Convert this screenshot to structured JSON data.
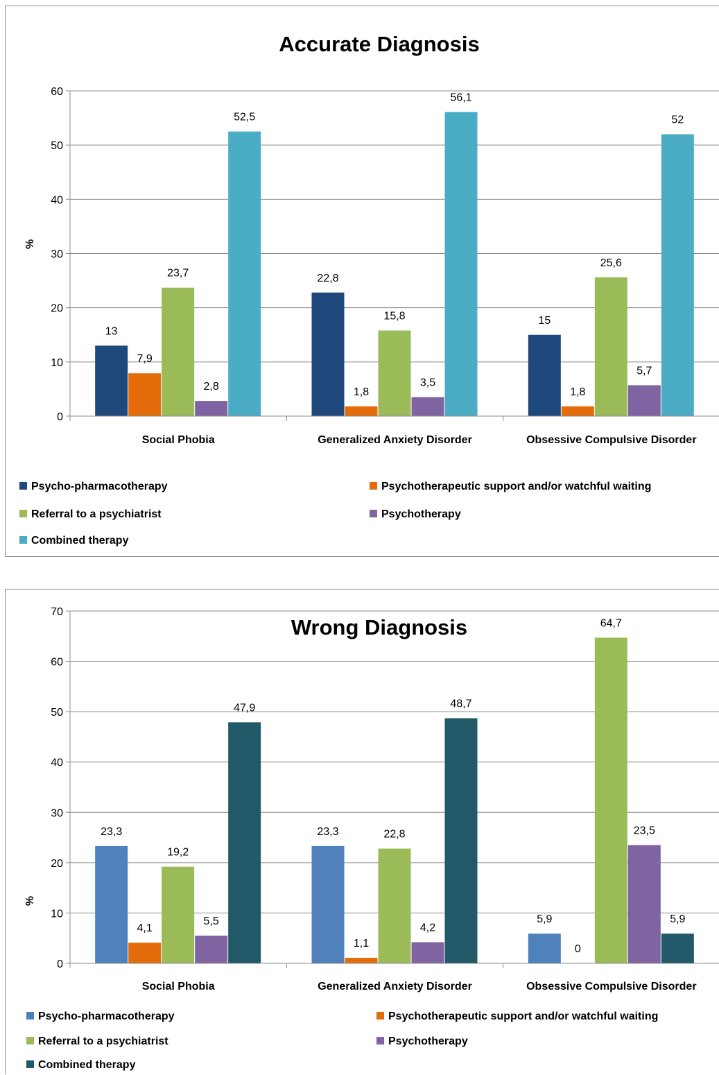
{
  "chart_data": [
    {
      "type": "bar",
      "title": "Accurate Diagnosis",
      "ylabel": "%",
      "ylim": [
        0,
        60
      ],
      "yticks": [
        "0",
        "10",
        "20",
        "30",
        "40",
        "50",
        "60"
      ],
      "grid": true,
      "legend_position": "bottom",
      "categories": [
        "Social Phobia",
        "Generalized Anxiety Disorder",
        "Obsessive Compulsive Disorder"
      ],
      "series": [
        {
          "name": "Psycho-pharmacotherapy",
          "color": "#1f497d",
          "values": [
            13,
            22.8,
            15
          ],
          "labels": [
            "13",
            "22,8",
            "15"
          ]
        },
        {
          "name": "Psychotherapeutic support and/or watchful waiting",
          "color": "#e46c0a",
          "values": [
            7.9,
            1.8,
            1.8
          ],
          "labels": [
            "7,9",
            "1,8",
            "1,8"
          ]
        },
        {
          "name": "Referral to a psychiatrist",
          "color": "#9bbb59",
          "values": [
            23.7,
            15.8,
            25.6
          ],
          "labels": [
            "23,7",
            "15,8",
            "25,6"
          ]
        },
        {
          "name": "Psychotherapy",
          "color": "#8064a2",
          "values": [
            2.8,
            3.5,
            5.7
          ],
          "labels": [
            "2,8",
            "3,5",
            "5,7"
          ]
        },
        {
          "name": "Combined therapy",
          "color": "#4bacc6",
          "values": [
            52.5,
            56.1,
            52
          ],
          "labels": [
            "52,5",
            "56,1",
            "52"
          ]
        }
      ]
    },
    {
      "type": "bar",
      "title": "Wrong Diagnosis",
      "ylabel": "%",
      "ylim": [
        0,
        70
      ],
      "yticks": [
        "0",
        "10",
        "20",
        "30",
        "40",
        "50",
        "60",
        "70"
      ],
      "grid": true,
      "legend_position": "bottom",
      "categories": [
        "Social Phobia",
        "Generalized Anxiety Disorder",
        "Obsessive Compulsive Disorder"
      ],
      "series": [
        {
          "name": "Psycho-pharmacotherapy",
          "color": "#4f81bd",
          "values": [
            23.3,
            23.3,
            5.9
          ],
          "labels": [
            "23,3",
            "23,3",
            "5,9"
          ]
        },
        {
          "name": "Psychotherapeutic support and/or watchful waiting",
          "color": "#e46c0a",
          "values": [
            4.1,
            1.1,
            0
          ],
          "labels": [
            "4,1",
            "1,1",
            "0"
          ]
        },
        {
          "name": "Referral to a psychiatrist",
          "color": "#9bbb59",
          "values": [
            19.2,
            22.8,
            64.7
          ],
          "labels": [
            "19,2",
            "22,8",
            "64,7"
          ]
        },
        {
          "name": "Psychotherapy",
          "color": "#8064a2",
          "values": [
            5.5,
            4.2,
            23.5
          ],
          "labels": [
            "5,5",
            "4,2",
            "23,5"
          ]
        },
        {
          "name": "Combined therapy",
          "color": "#215968",
          "values": [
            47.9,
            48.7,
            5.9
          ],
          "labels": [
            "47,9",
            "48,7",
            "5,9"
          ]
        }
      ]
    }
  ]
}
